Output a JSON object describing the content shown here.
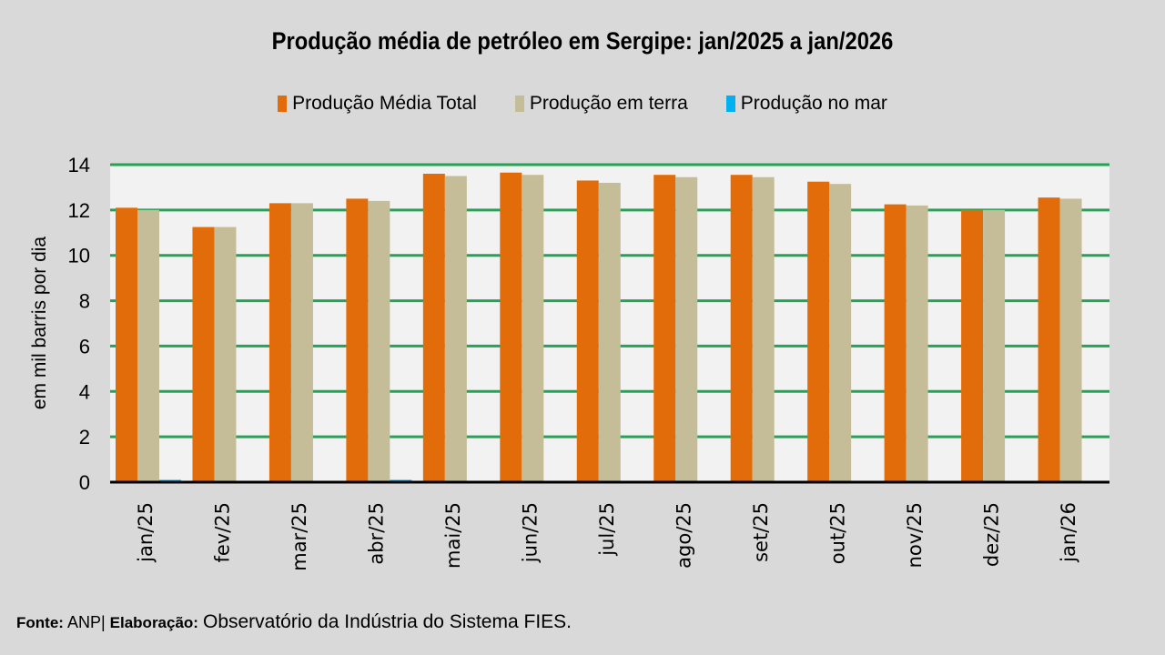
{
  "chart_data": {
    "type": "bar",
    "title": "Produção média de petróleo em Sergipe: jan/2025 a jan/2026",
    "xlabel": "",
    "ylabel": "em mil barris por dia",
    "ylim": [
      0,
      14
    ],
    "yticks": [
      "0",
      "2",
      "4",
      "6",
      "8",
      "10",
      "12",
      "14"
    ],
    "grid": true,
    "legend_position": "top-center",
    "categories": [
      "jan/25",
      "fev/25",
      "mar/25",
      "abr/25",
      "mai/25",
      "jun/25",
      "jul/25",
      "ago/25",
      "set/25",
      "out/25",
      "nov/25",
      "dez/25",
      "jan/26"
    ],
    "series": [
      {
        "name": "Produção Média Total",
        "color": "#e36c0a",
        "values": [
          12.1,
          11.25,
          12.3,
          12.5,
          13.6,
          13.65,
          13.3,
          13.55,
          13.55,
          13.25,
          12.25,
          12.0,
          12.55
        ]
      },
      {
        "name": "Produção em terra",
        "color": "#c4bd97",
        "values": [
          12.0,
          11.25,
          12.3,
          12.4,
          13.5,
          13.55,
          13.2,
          13.45,
          13.45,
          13.15,
          12.2,
          12.0,
          12.5
        ]
      },
      {
        "name": "Produção no mar",
        "color": "#00b0f0",
        "values": [
          0.1,
          0.0,
          0.0,
          0.1,
          0.0,
          0.0,
          0.0,
          0.0,
          0.0,
          0.0,
          0.0,
          0.0,
          0.0
        ]
      }
    ],
    "gridline_color": "#22a454",
    "plot_background": "#f2f2f2"
  },
  "footer": {
    "fonte_label": "Fonte:",
    "fonte_value": "ANP|",
    "elaboracao_label": "Elaboração:",
    "elaboracao_value": "Observatório da Indústria do Sistema FIES."
  }
}
